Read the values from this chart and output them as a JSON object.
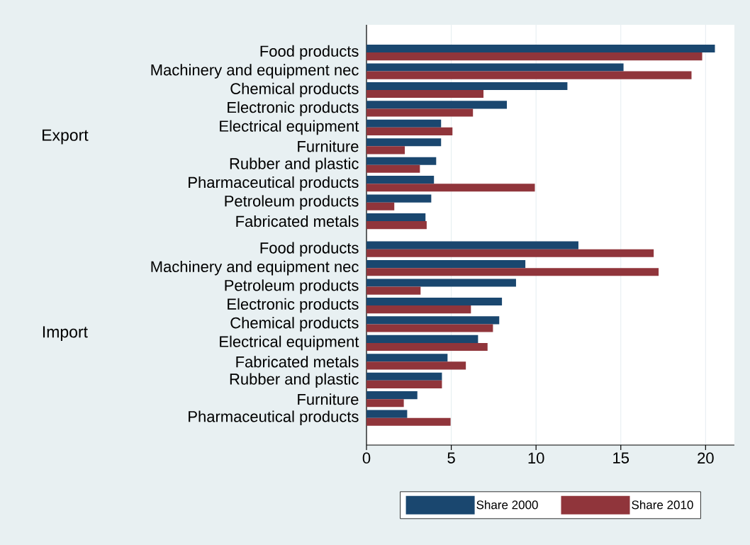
{
  "chart_data": {
    "type": "bar",
    "orientation": "horizontal",
    "categories": [
      "Food products",
      "Machinery and equipment nec",
      "Chemical products",
      "Electronic products",
      "Electrical equipment",
      "Furniture",
      "Rubber and plastic",
      "Pharmaceutical products",
      "Petroleum products",
      "Fabricated metals",
      "Food products",
      "Machinery and equipment nec",
      "Petroleum products",
      "Electronic products",
      "Chemical products",
      "Electrical equipment",
      "Fabricated metals",
      "Rubber and plastic",
      "Furniture",
      "Pharmaceutical products"
    ],
    "series": [
      {
        "name": "Share 2000",
        "color": "#1a476f",
        "values": [
          20.55,
          15.16,
          11.85,
          8.28,
          4.4,
          4.4,
          4.11,
          3.98,
          3.82,
          3.48,
          12.5,
          9.37,
          8.82,
          7.99,
          7.83,
          6.58,
          4.78,
          4.45,
          3.0,
          2.4
        ]
      },
      {
        "name": "Share 2010",
        "color": "#90353b",
        "values": [
          19.8,
          19.17,
          6.9,
          6.28,
          5.07,
          2.26,
          3.15,
          9.93,
          1.64,
          3.55,
          16.94,
          17.23,
          3.19,
          6.16,
          7.46,
          7.14,
          5.86,
          4.45,
          2.2,
          4.96
        ]
      }
    ],
    "annotations": [
      "Export",
      "Import"
    ],
    "xlim": [
      0,
      21.7
    ],
    "xticks": [
      0,
      5,
      10,
      15,
      20
    ],
    "grid": "x",
    "legend": "bottom"
  }
}
